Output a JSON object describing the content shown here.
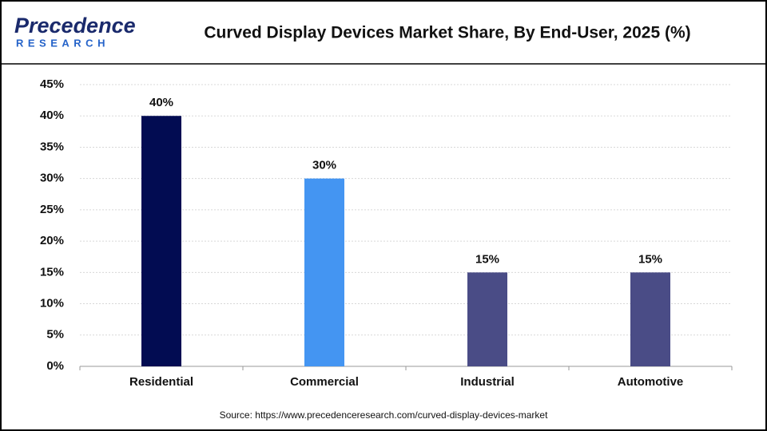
{
  "logo": {
    "name": "Precedence",
    "sub": "RESEARCH"
  },
  "chart_data": {
    "type": "bar",
    "title": "Curved Display Devices Market Share, By End-User, 2025 (%)",
    "categories": [
      "Residential",
      "Commercial",
      "Industrial",
      "Automotive"
    ],
    "values": [
      40,
      30,
      15,
      15
    ],
    "value_labels": [
      "40%",
      "30%",
      "15%",
      "15%"
    ],
    "colors": [
      "#020c52",
      "#4495f2",
      "#4a4c86",
      "#4a4c86"
    ],
    "ylim": [
      0,
      45
    ],
    "yticks": [
      {
        "value": 0,
        "label": "0%"
      },
      {
        "value": 5,
        "label": "5%"
      },
      {
        "value": 10,
        "label": "10%"
      },
      {
        "value": 15,
        "label": "15%"
      },
      {
        "value": 20,
        "label": "20%"
      },
      {
        "value": 25,
        "label": "25%"
      },
      {
        "value": 30,
        "label": "30%"
      },
      {
        "value": 35,
        "label": "35%"
      },
      {
        "value": 40,
        "label": "40%"
      },
      {
        "value": 45,
        "label": "45%"
      }
    ],
    "grid": true,
    "source": "Source: https://www.precedenceresearch.com/curved-display-devices-market"
  }
}
